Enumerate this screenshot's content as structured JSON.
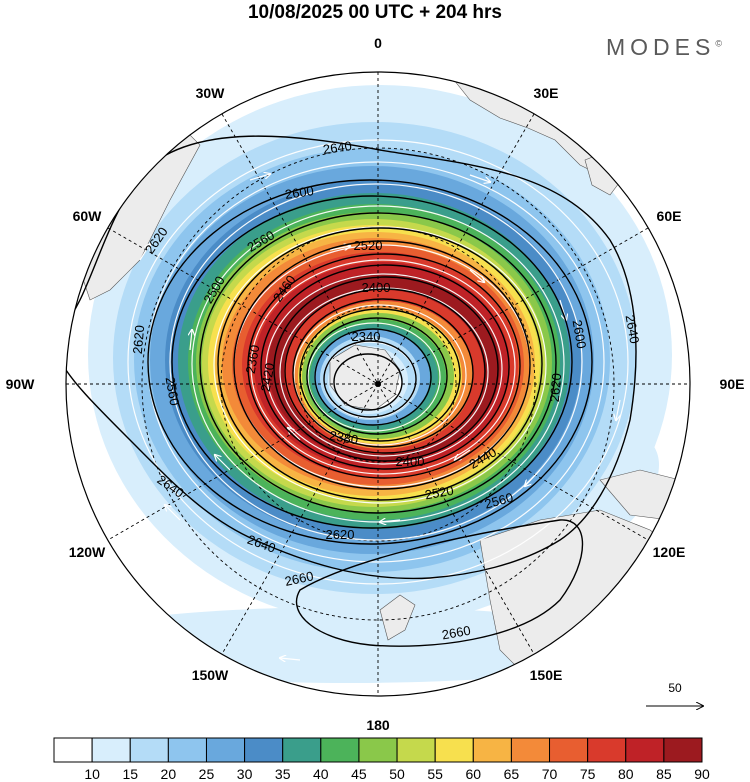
{
  "header": {
    "title": "10/08/2025  00 UTC  + 204 hrs",
    "brand": "MODES",
    "brand_mark": "©"
  },
  "map": {
    "projection": "south-polar-stereographic",
    "longitude_labels": [
      {
        "lon": 0,
        "text": "0"
      },
      {
        "lon": 30,
        "text": "30E"
      },
      {
        "lon": 60,
        "text": "60E"
      },
      {
        "lon": 90,
        "text": "90E"
      },
      {
        "lon": 120,
        "text": "120E"
      },
      {
        "lon": 150,
        "text": "150E"
      },
      {
        "lon": 180,
        "text": "180"
      },
      {
        "lon": -150,
        "text": "150W"
      },
      {
        "lon": -120,
        "text": "120W"
      },
      {
        "lon": -90,
        "text": "90W"
      },
      {
        "lon": -60,
        "text": "60W"
      },
      {
        "lon": -30,
        "text": "30W"
      }
    ],
    "contour_labels": [
      {
        "text": "2640"
      },
      {
        "text": "2600"
      },
      {
        "text": "2620"
      },
      {
        "text": "2560"
      },
      {
        "text": "2520"
      },
      {
        "text": "2500"
      },
      {
        "text": "2460"
      },
      {
        "text": "2400"
      },
      {
        "text": "2340"
      },
      {
        "text": "2360"
      },
      {
        "text": "2420"
      },
      {
        "text": "2600"
      },
      {
        "text": "2640"
      },
      {
        "text": "2620"
      },
      {
        "text": "2380"
      },
      {
        "text": "2400"
      },
      {
        "text": "2440"
      },
      {
        "text": "2560"
      },
      {
        "text": "2520"
      },
      {
        "text": "2620"
      },
      {
        "text": "2640"
      },
      {
        "text": "2660"
      },
      {
        "text": "2660"
      },
      {
        "text": "2620"
      },
      {
        "text": "2560"
      },
      {
        "text": "2640"
      }
    ],
    "reference_vector_label": "50"
  },
  "colorbar": {
    "labels": [
      "10",
      "15",
      "20",
      "25",
      "30",
      "35",
      "40",
      "45",
      "50",
      "55",
      "60",
      "65",
      "70",
      "75",
      "80",
      "85",
      "90"
    ],
    "colors": [
      "#ffffff",
      "#d8eefc",
      "#b4dcf7",
      "#8ec5ee",
      "#69a8dd",
      "#4b8cc7",
      "#3a9e8b",
      "#4cb35a",
      "#8ac84a",
      "#c5d94c",
      "#f7e04e",
      "#f7b444",
      "#f38a39",
      "#e85e30",
      "#d93a2c",
      "#bf2227",
      "#9c1a1f"
    ]
  }
}
